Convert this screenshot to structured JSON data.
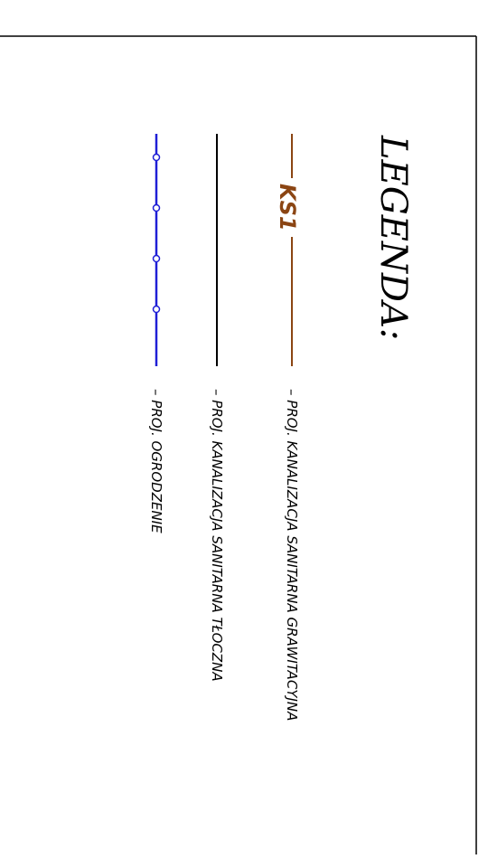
{
  "legend": {
    "title": "LEGENDA:",
    "items": [
      {
        "line_label": "KS1",
        "description": "– PROJ. KANALIZACJA SANITARNA GRAWITACYJNA",
        "color": "#8B4513",
        "style": "labeled-line"
      },
      {
        "line_label": "",
        "description": "– PROJ. KANALIZACJA SANITARNA TŁOCZNA",
        "color": "#000000",
        "style": "solid-line"
      },
      {
        "line_label": "",
        "description": "– PROJ. OGRODZENIE",
        "color": "#1f1fd6",
        "style": "fence-line-with-posts"
      }
    ]
  },
  "colors": {
    "background": "#ffffff",
    "frame": "#000000"
  }
}
